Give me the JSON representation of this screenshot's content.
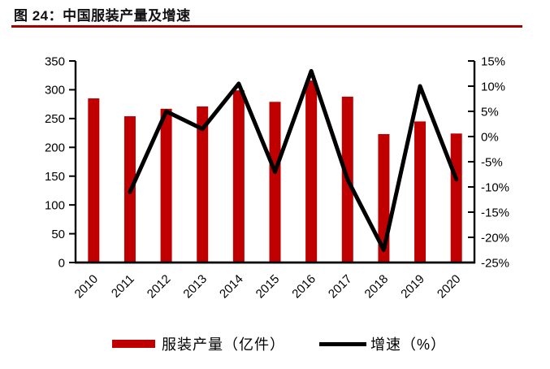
{
  "figure": {
    "title_label": "图 24：中国服装产量及增速"
  },
  "colors": {
    "bar": "#C00000",
    "line": "#000000",
    "accent_rule": "#A40000",
    "axis": "#000000",
    "background": "#FFFFFF"
  },
  "chart_data": {
    "type": "bar",
    "subtype": "combo-bar-line-dual-axis",
    "title": "中国服装产量及增速",
    "categories": [
      "2010",
      "2011",
      "2012",
      "2013",
      "2014",
      "2015",
      "2016",
      "2017",
      "2018",
      "2019",
      "2020"
    ],
    "series": [
      {
        "name": "服装产量（亿件）",
        "type": "bar",
        "axis": "left",
        "color": "#C00000",
        "values": [
          285,
          254,
          267,
          271,
          299,
          279,
          316,
          288,
          223,
          245,
          224
        ]
      },
      {
        "name": "增速（%）",
        "type": "line",
        "axis": "right",
        "color": "#000000",
        "values": [
          null,
          -11,
          5,
          1.5,
          10.5,
          -7,
          13,
          -8.5,
          -22.5,
          10,
          -8.5
        ]
      }
    ],
    "left_axis": {
      "min": 0,
      "max": 350,
      "step": 50,
      "tick_labels": [
        "0",
        "50",
        "100",
        "150",
        "200",
        "250",
        "300",
        "350"
      ]
    },
    "right_axis": {
      "min": -25,
      "max": 15,
      "step": 5,
      "tick_labels": [
        "15%",
        "10%",
        "5%",
        "0%",
        "-5%",
        "-10%",
        "-15%",
        "-20%",
        "-25%"
      ]
    },
    "grid": false,
    "legend_position": "bottom",
    "x_label_rotation_deg": -45
  }
}
